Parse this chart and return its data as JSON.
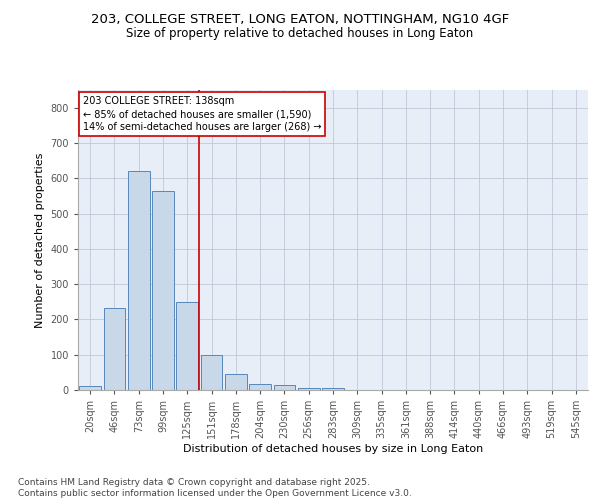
{
  "title_line1": "203, COLLEGE STREET, LONG EATON, NOTTINGHAM, NG10 4GF",
  "title_line2": "Size of property relative to detached houses in Long Eaton",
  "xlabel": "Distribution of detached houses by size in Long Eaton",
  "ylabel": "Number of detached properties",
  "categories": [
    "20sqm",
    "46sqm",
    "73sqm",
    "99sqm",
    "125sqm",
    "151sqm",
    "178sqm",
    "204sqm",
    "230sqm",
    "256sqm",
    "283sqm",
    "309sqm",
    "335sqm",
    "361sqm",
    "388sqm",
    "414sqm",
    "440sqm",
    "466sqm",
    "493sqm",
    "519sqm",
    "545sqm"
  ],
  "values": [
    10,
    232,
    620,
    565,
    248,
    98,
    45,
    18,
    15,
    5,
    5,
    0,
    0,
    0,
    0,
    0,
    0,
    0,
    0,
    0,
    0
  ],
  "bar_color": "#c8d8e8",
  "bar_edge_color": "#5588bb",
  "grid_color": "#c0c8d8",
  "background_color": "#e8eef8",
  "red_line_x": 4.5,
  "annotation_box_text": "203 COLLEGE STREET: 138sqm\n← 85% of detached houses are smaller (1,590)\n14% of semi-detached houses are larger (268) →",
  "annotation_box_color": "#cc0000",
  "ylim": [
    0,
    850
  ],
  "yticks": [
    0,
    100,
    200,
    300,
    400,
    500,
    600,
    700,
    800
  ],
  "footer_text": "Contains HM Land Registry data © Crown copyright and database right 2025.\nContains public sector information licensed under the Open Government Licence v3.0.",
  "title_fontsize": 9.5,
  "subtitle_fontsize": 8.5,
  "axis_label_fontsize": 8,
  "tick_fontsize": 7,
  "annotation_fontsize": 7,
  "footer_fontsize": 6.5
}
